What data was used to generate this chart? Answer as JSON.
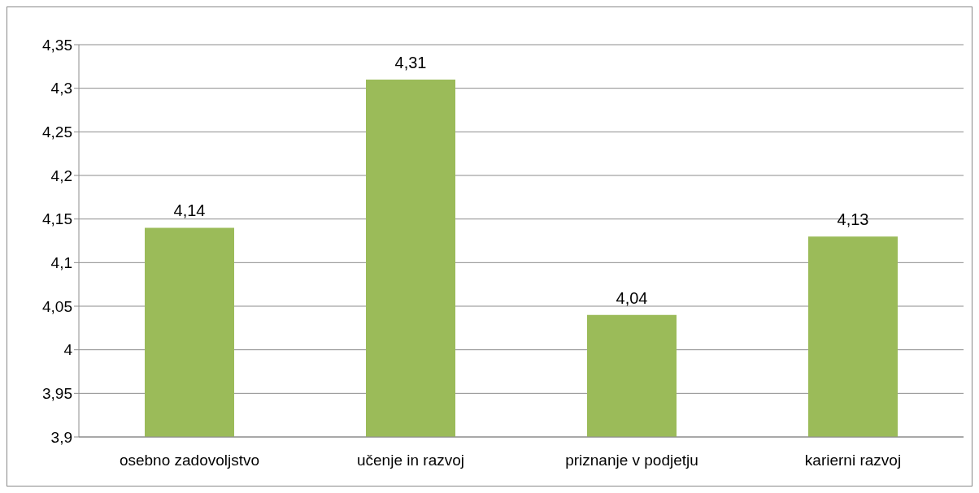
{
  "chart_data": {
    "type": "bar",
    "categories": [
      "osebno zadovoljstvo",
      "učenje in razvoj",
      "priznanje v podjetju",
      "karierni razvoj"
    ],
    "values": [
      4.14,
      4.31,
      4.04,
      4.13
    ],
    "value_labels": [
      "4,14",
      "4,31",
      "4,04",
      "4,13"
    ],
    "color": "#9bbb59",
    "ylim": [
      3.9,
      4.35
    ],
    "yticks": [
      {
        "value": 3.9,
        "label": "3,9"
      },
      {
        "value": 3.95,
        "label": "3,95"
      },
      {
        "value": 4,
        "label": "4"
      },
      {
        "value": 4.05,
        "label": "4,05"
      },
      {
        "value": 4.1,
        "label": "4,1"
      },
      {
        "value": 4.15,
        "label": "4,15"
      },
      {
        "value": 4.2,
        "label": "4,2"
      },
      {
        "value": 4.25,
        "label": "4,25"
      },
      {
        "value": 4.3,
        "label": "4,3"
      },
      {
        "value": 4.35,
        "label": "4,35"
      }
    ],
    "grid": "y"
  }
}
